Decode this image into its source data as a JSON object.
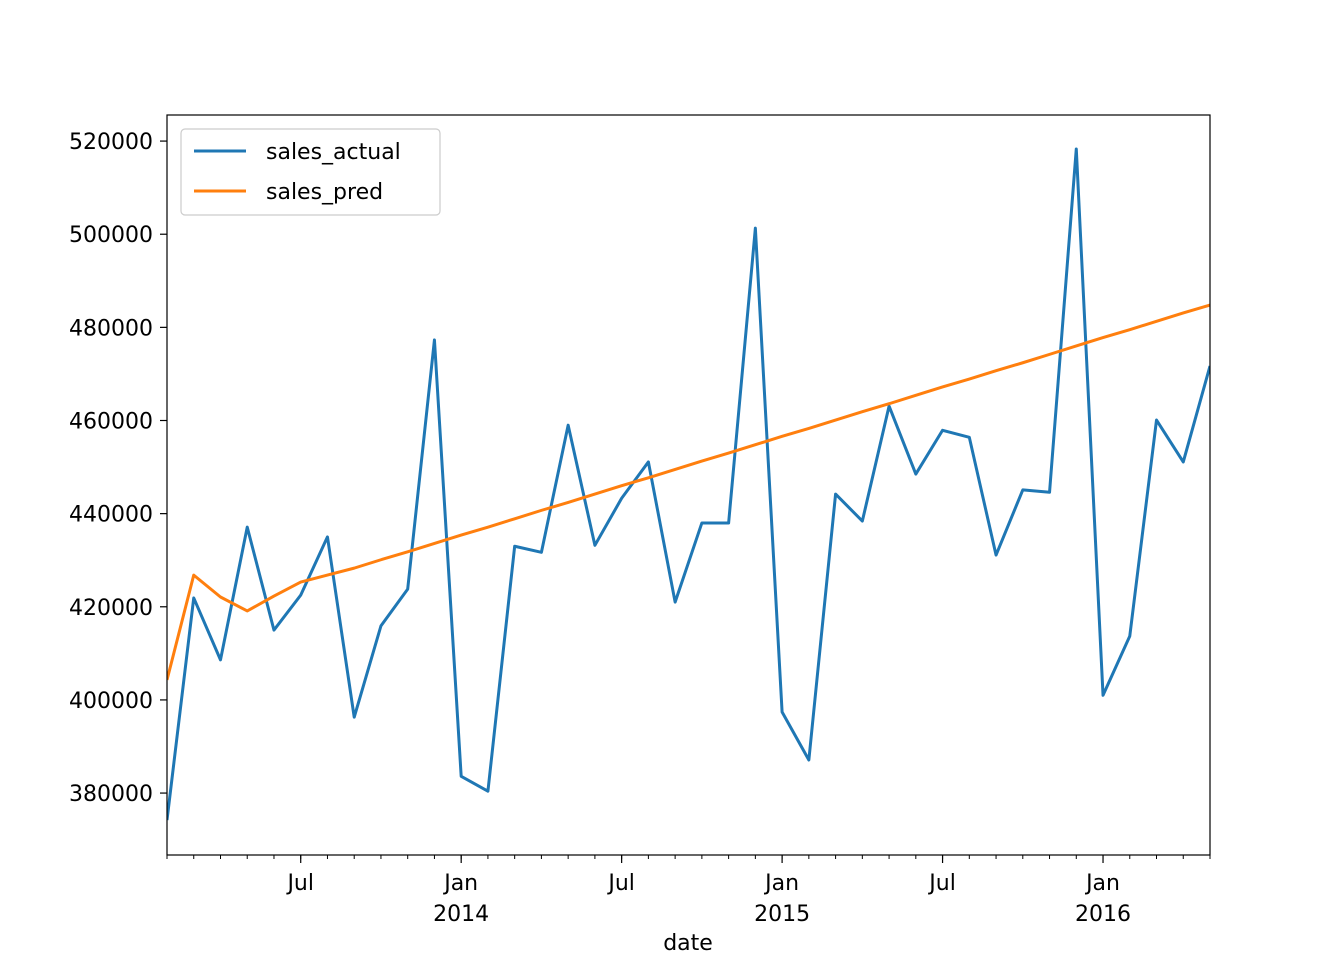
{
  "chart_data": {
    "type": "line",
    "xlabel": "date",
    "x": [
      "2013-02",
      "2013-03",
      "2013-04",
      "2013-05",
      "2013-06",
      "2013-07",
      "2013-08",
      "2013-09",
      "2013-10",
      "2013-11",
      "2013-12",
      "2014-01",
      "2014-02",
      "2014-03",
      "2014-04",
      "2014-05",
      "2014-06",
      "2014-07",
      "2014-08",
      "2014-09",
      "2014-10",
      "2014-11",
      "2014-12",
      "2015-01",
      "2015-02",
      "2015-03",
      "2015-04",
      "2015-05",
      "2015-06",
      "2015-07",
      "2015-08",
      "2015-09",
      "2015-10",
      "2015-11",
      "2015-12",
      "2016-01",
      "2016-02",
      "2016-03",
      "2016-04",
      "2016-05"
    ],
    "series": [
      {
        "name": "sales_actual",
        "color": "#1f77b4",
        "values": [
          374200,
          421900,
          408600,
          437100,
          415000,
          422500,
          435000,
          396300,
          415900,
          423800,
          477300,
          383600,
          380400,
          433000,
          431700,
          459000,
          433200,
          443300,
          451100,
          421000,
          438000,
          438000,
          501300,
          397400,
          387100,
          444200,
          438400,
          463100,
          448500,
          457900,
          456400,
          431100,
          445100,
          444600,
          518300,
          401000,
          413700,
          460100,
          451100,
          471700
        ]
      },
      {
        "name": "sales_pred",
        "color": "#ff7f0e",
        "values": [
          404300,
          426800,
          422100,
          419100,
          422300,
          425300,
          426800,
          428300,
          430100,
          431800,
          433600,
          435400,
          437100,
          438900,
          440700,
          442400,
          444200,
          446000,
          447700,
          449500,
          451300,
          453000,
          454800,
          456600,
          458300,
          460100,
          461900,
          463600,
          465400,
          467200,
          468900,
          470700,
          472400,
          474200,
          476000,
          477800,
          479500,
          481300,
          483100,
          484800
        ]
      }
    ],
    "xlim": [
      "2013-02",
      "2016-05"
    ],
    "xticks": [
      {
        "value": "2013-07",
        "label": "Jul"
      },
      {
        "value": "2014-01",
        "label": "Jan\n2014"
      },
      {
        "value": "2014-07",
        "label": "Jul"
      },
      {
        "value": "2015-01",
        "label": "Jan\n2015"
      },
      {
        "value": "2015-07",
        "label": "Jul"
      },
      {
        "value": "2016-01",
        "label": "Jan\n2016"
      }
    ],
    "ylim": [
      366700,
      525600
    ],
    "yticks": [
      380000,
      400000,
      420000,
      440000,
      460000,
      480000,
      500000,
      520000
    ],
    "grid": false,
    "legend": "upper left"
  }
}
